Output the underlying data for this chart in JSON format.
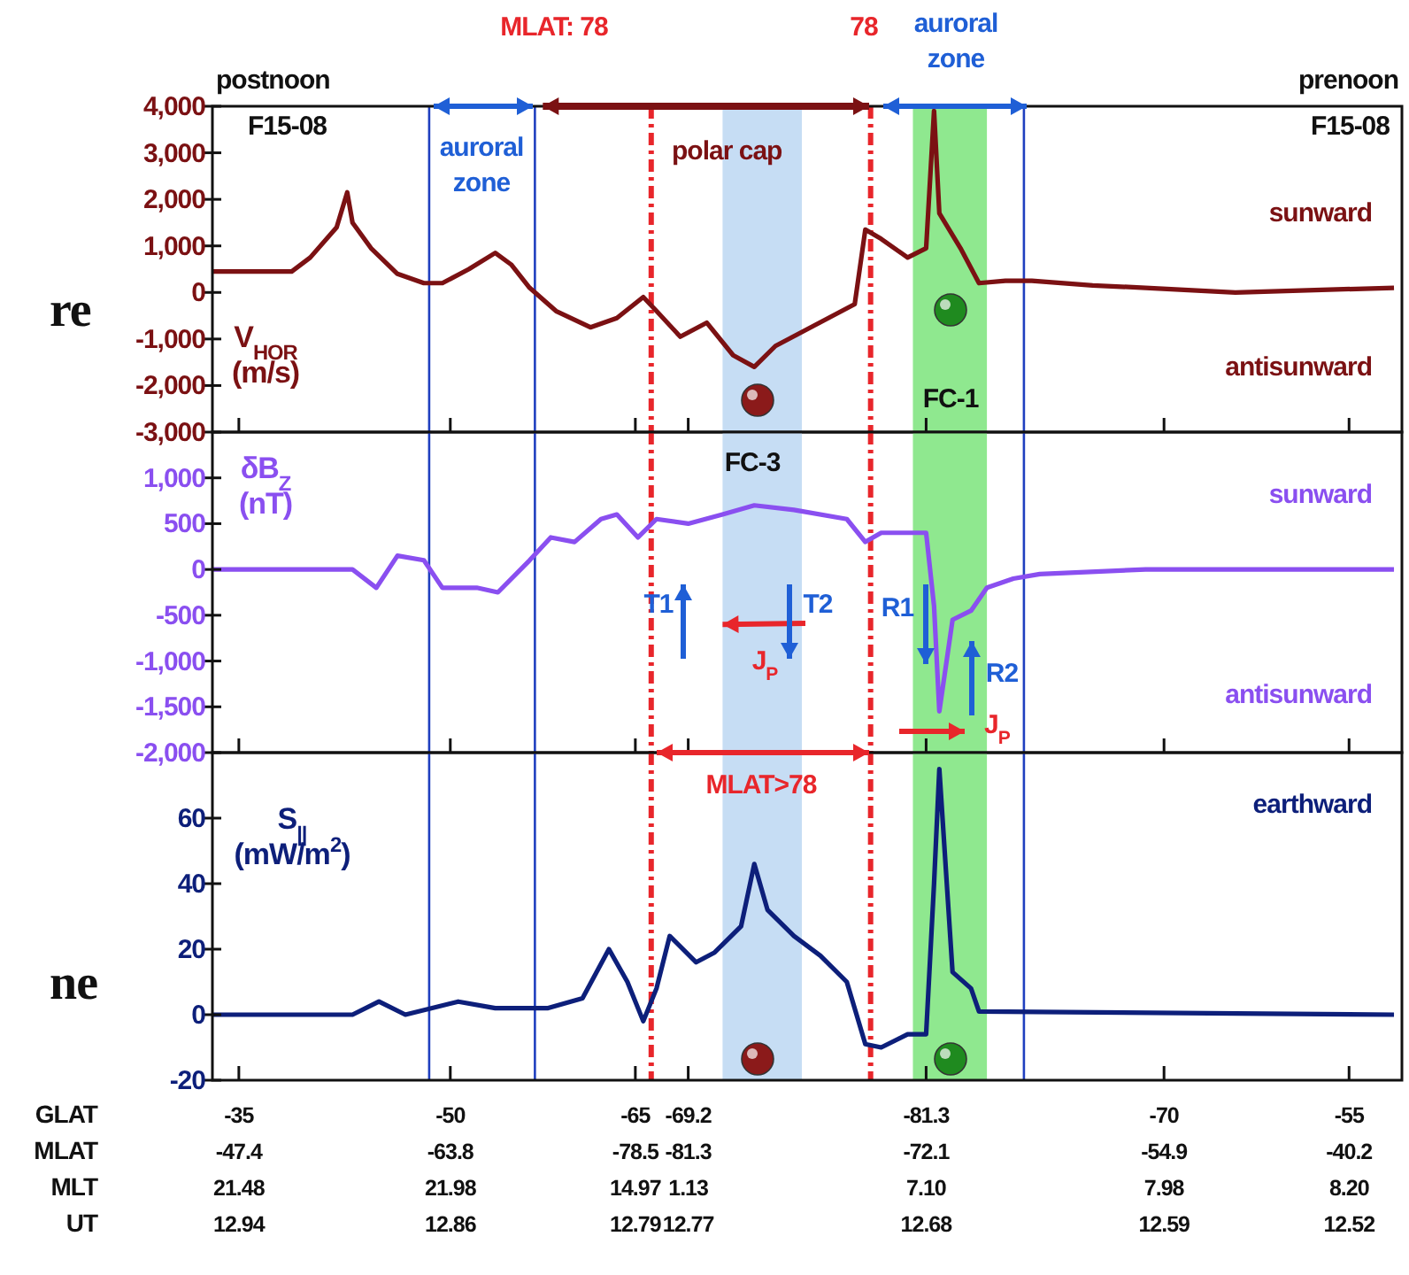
{
  "chart_data": [
    {
      "type": "line",
      "ylabel": "V$_{HOR}$ (m/s)",
      "tick_labels": "y",
      "x": [
        12.95,
        12.92,
        12.913,
        12.903,
        12.899,
        12.897,
        12.89,
        12.88,
        12.87,
        12.863,
        12.853,
        12.843,
        12.837,
        12.83,
        12.82,
        12.807,
        12.797,
        12.787,
        12.782,
        12.773,
        12.763,
        12.753,
        12.745,
        12.737,
        12.727,
        12.717,
        12.707,
        12.703,
        12.697,
        12.687,
        12.68,
        12.677,
        12.675,
        12.667,
        12.66,
        12.65,
        12.64,
        12.617,
        12.597,
        12.563,
        12.503
      ],
      "series": [
        {
          "color": "#7b1113",
          "values": [
            450,
            450,
            750,
            1400,
            2150,
            1500,
            950,
            400,
            200,
            200,
            500,
            850,
            600,
            100,
            -400,
            -750,
            -550,
            -100,
            -400,
            -950,
            -650,
            -1350,
            -1600,
            -1150,
            -850,
            -550,
            -250,
            1350,
            1150,
            750,
            950,
            3900,
            1700,
            950,
            200,
            250,
            250,
            150,
            100,
            0,
            100
          ]
        }
      ],
      "xlim": [
        12.95,
        12.5
      ],
      "ylim": [
        -3000,
        4000
      ],
      "xticks": [
        12.94,
        12.86,
        12.79,
        12.77,
        12.68,
        12.59,
        12.52
      ],
      "yticks": [
        {
          "value": 4000,
          "label": "4,000"
        },
        {
          "value": 3000,
          "label": "3,000"
        },
        {
          "value": 2000,
          "label": "2,000"
        },
        {
          "value": 1000,
          "label": "1,000"
        },
        0,
        {
          "value": -1000,
          "label": "-1,000"
        },
        {
          "value": -2000,
          "label": "-2,000"
        },
        {
          "value": -3000,
          "label": "-3,000"
        }
      ],
      "ref_lines": [
        {
          "axis": "x",
          "value": 12.784,
          "color": "#e8262b",
          "line_style": "dashed"
        },
        {
          "axis": "x",
          "value": 12.701,
          "color": "#e8262b",
          "line_style": "dashed"
        },
        {
          "axis": "x",
          "value": 12.868,
          "color": "#1f3fbf"
        },
        {
          "axis": "x",
          "value": 12.828,
          "color": "#1f3fbf"
        },
        {
          "axis": "x",
          "value": 12.643,
          "color": "#1f3fbf"
        }
      ],
      "bands": [
        {
          "axis": "x",
          "from": 12.757,
          "to": 12.727,
          "color": "#c6ddf4",
          "label": "polar cap"
        },
        {
          "axis": "x",
          "from": 12.685,
          "to": 12.657,
          "color": "#8fe88f"
        }
      ],
      "annotations": [
        "postnoon",
        "F15-08",
        "prenoon",
        "F15-08",
        "sunward",
        "antisunward",
        "re",
        "auroral\nzone",
        {
          "text": "auroral\nzone",
          "x": 12.825,
          "y": 4000
        },
        "FC-1",
        "MLAT: 78",
        "78"
      ]
    },
    {
      "type": "line",
      "ylabel": "δB$_{Z}$ (nT)",
      "tick_labels": "y",
      "x": [
        12.95,
        12.897,
        12.888,
        12.88,
        12.87,
        12.863,
        12.85,
        12.842,
        12.83,
        12.822,
        12.813,
        12.803,
        12.797,
        12.789,
        12.782,
        12.77,
        12.757,
        12.745,
        12.73,
        12.71,
        12.703,
        12.697,
        12.68,
        12.677,
        12.675,
        12.67,
        12.663,
        12.657,
        12.647,
        12.637,
        12.597,
        12.563,
        12.503
      ],
      "series": [
        {
          "color": "#8a4ff0",
          "values": [
            0,
            0,
            -200,
            150,
            100,
            -200,
            -200,
            -250,
            100,
            350,
            300,
            550,
            600,
            350,
            550,
            500,
            600,
            700,
            650,
            550,
            300,
            400,
            400,
            -400,
            -1550,
            -550,
            -450,
            -200,
            -100,
            -50,
            0,
            0,
            0
          ]
        }
      ],
      "xlim": [
        12.95,
        12.5
      ],
      "ylim": [
        -2000,
        1500
      ],
      "xticks": [
        12.94,
        12.86,
        12.79,
        12.77,
        12.68,
        12.59,
        12.52
      ],
      "yticks": [
        {
          "value": 1000,
          "label": "1,000"
        },
        500,
        0,
        -500,
        {
          "value": -1000,
          "label": "-1,000"
        },
        {
          "value": -1500,
          "label": "-1,500"
        },
        {
          "value": -2000,
          "label": "-2,000"
        }
      ],
      "ref_lines": [
        {
          "axis": "x",
          "value": 12.784,
          "color": "#e8262b",
          "line_style": "dashed"
        },
        {
          "axis": "x",
          "value": 12.701,
          "color": "#e8262b",
          "line_style": "dashed"
        },
        {
          "axis": "x",
          "value": 12.868,
          "color": "#1f3fbf"
        },
        {
          "axis": "x",
          "value": 12.828,
          "color": "#1f3fbf"
        },
        {
          "axis": "x",
          "value": 12.643,
          "color": "#1f3fbf"
        }
      ],
      "bands": [
        {
          "axis": "x",
          "from": 12.757,
          "to": 12.727,
          "color": "#c6ddf4"
        },
        {
          "axis": "x",
          "from": 12.685,
          "to": 12.657,
          "color": "#8fe88f"
        }
      ],
      "annotations": [
        "sunward",
        "antisunward",
        "T1",
        {
          "text": "T2",
          "x": 12.757,
          "y": -600
        },
        "R1",
        "R2",
        "J$_{P}$",
        "J$_{P}$",
        "FC-3"
      ]
    },
    {
      "type": "line",
      "ylabel": "S$_{||}$ (mW/m$^{2}$)",
      "xlabel": "GLAT\nMLAT\nMLT\nUT",
      "x": [
        12.95,
        12.897,
        12.887,
        12.877,
        12.857,
        12.843,
        12.823,
        12.81,
        12.8,
        12.793,
        12.787,
        12.782,
        12.777,
        12.767,
        12.76,
        12.75,
        12.745,
        12.74,
        12.73,
        12.72,
        12.71,
        12.703,
        12.697,
        12.687,
        12.68,
        12.677,
        12.675,
        12.67,
        12.663,
        12.66,
        12.503
      ],
      "series": [
        {
          "color": "#0d1f7a",
          "values": [
            0,
            0,
            4,
            0,
            4,
            2,
            2,
            5,
            20,
            10,
            -2,
            8,
            24,
            16,
            19,
            27,
            46,
            32,
            24,
            18,
            10,
            -9,
            -10,
            -6,
            -6,
            40,
            75,
            13,
            8,
            1,
            0
          ]
        }
      ],
      "xlim": [
        12.95,
        12.5
      ],
      "ylim": [
        -20,
        80
      ],
      "xticks": [
        12.94,
        12.86,
        12.79,
        12.77,
        12.68,
        12.59,
        12.52
      ],
      "yticks": [
        60,
        40,
        20,
        0,
        -20
      ],
      "ref_lines": [
        {
          "axis": "x",
          "value": 12.784,
          "color": "#e8262b",
          "line_style": "dashed"
        },
        {
          "axis": "x",
          "value": 12.701,
          "color": "#e8262b",
          "line_style": "dashed"
        },
        {
          "axis": "x",
          "value": 12.868,
          "color": "#1f3fbf"
        },
        {
          "axis": "x",
          "value": 12.828,
          "color": "#1f3fbf"
        },
        {
          "axis": "x",
          "value": 12.643,
          "color": "#1f3fbf"
        }
      ],
      "bands": [
        {
          "axis": "x",
          "from": 12.757,
          "to": 12.727,
          "color": "#c6ddf4"
        },
        {
          "axis": "x",
          "from": 12.685,
          "to": 12.657,
          "color": "#8fe88f"
        }
      ],
      "annotations": [
        "earthward",
        "ne",
        "MLAT>78",
        "-35",
        "-50",
        "-65",
        "-69.2",
        "-81.3",
        "-70",
        "-55",
        "-47.4",
        "-63.8",
        "-78.5",
        "-81.3",
        "-72.1",
        "-54.9",
        "-40.2",
        "21.48",
        "21.98",
        "14.97",
        "1.13",
        "7.10",
        "7.98",
        "8.20"
      ]
    }
  ]
}
